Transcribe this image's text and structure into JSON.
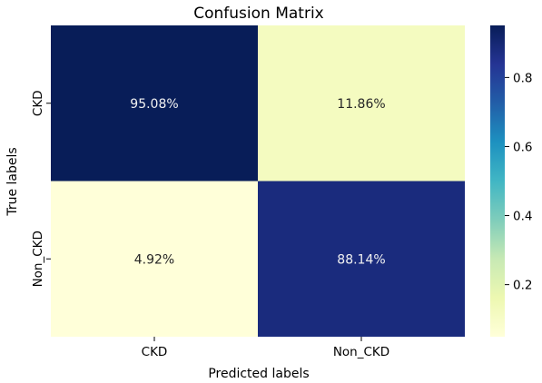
{
  "chart_data": {
    "type": "heatmap",
    "title": "Confusion Matrix",
    "xlabel": "Predicted labels",
    "ylabel": "True labels",
    "x_categories": [
      "CKD",
      "Non_CKD"
    ],
    "y_categories": [
      "CKD",
      "Non_CKD"
    ],
    "values": [
      [
        0.9508,
        0.1186
      ],
      [
        0.0492,
        0.8814
      ]
    ],
    "cell_labels": [
      [
        "95.08%",
        "11.86%"
      ],
      [
        "4.92%",
        "88.14%"
      ]
    ],
    "colormap": "YlGnBu",
    "colorbar": {
      "range": [
        0.0492,
        0.9508
      ],
      "ticks": [
        0.2,
        0.4,
        0.6,
        0.8
      ],
      "tick_labels": [
        "0.2",
        "0.4",
        "0.6",
        "0.8"
      ]
    },
    "colors": {
      "low": "#fdfecb",
      "high": "#0b1d5a"
    }
  }
}
